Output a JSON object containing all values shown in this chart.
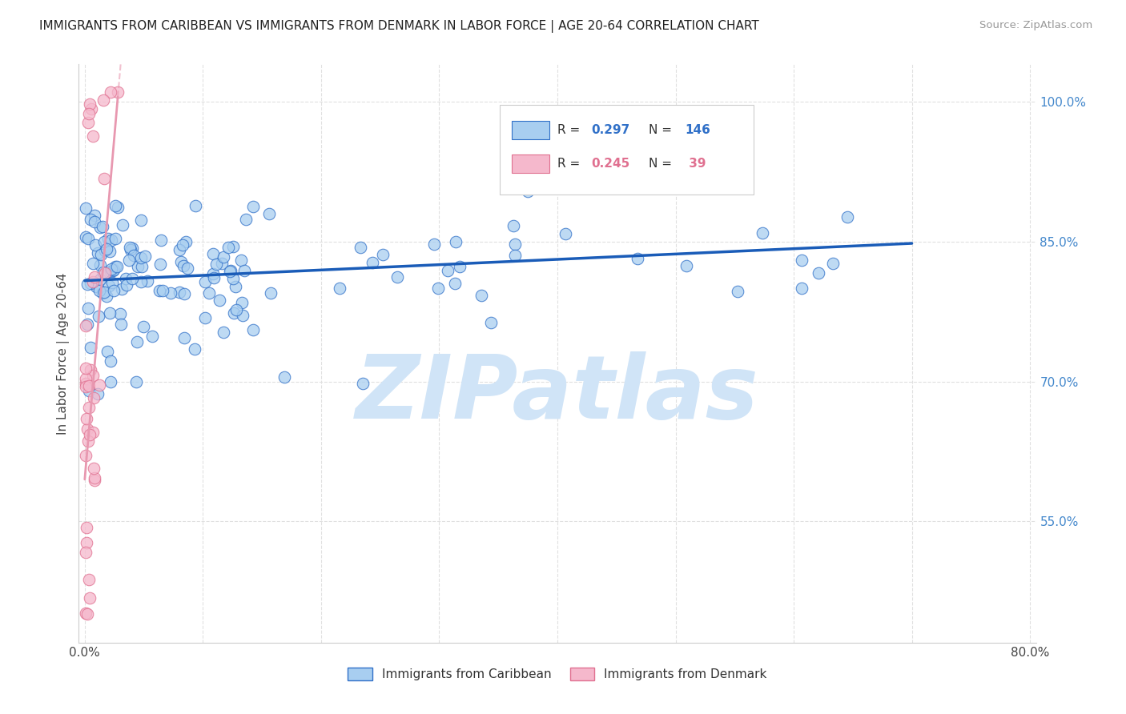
{
  "title": "IMMIGRANTS FROM CARIBBEAN VS IMMIGRANTS FROM DENMARK IN LABOR FORCE | AGE 20-64 CORRELATION CHART",
  "source": "Source: ZipAtlas.com",
  "ylabel": "In Labor Force | Age 20-64",
  "xlim": [
    -0.005,
    0.805
  ],
  "ylim": [
    0.42,
    1.04
  ],
  "xticks": [
    0.0,
    0.1,
    0.2,
    0.3,
    0.4,
    0.5,
    0.6,
    0.7,
    0.8
  ],
  "xticklabels": [
    "0.0%",
    "",
    "",
    "",
    "",
    "",
    "",
    "",
    "80.0%"
  ],
  "yticks_right": [
    0.55,
    0.7,
    0.85,
    1.0
  ],
  "yticklabels_right": [
    "55.0%",
    "70.0%",
    "85.0%",
    "100.0%"
  ],
  "blue_color": "#a8cef0",
  "blue_edge_color": "#3070c8",
  "pink_color": "#f5b8cc",
  "pink_edge_color": "#e07090",
  "pink_trend_color": "#e898b0",
  "blue_trend_color": "#1a5cb8",
  "legend_label_blue": "Immigrants from Caribbean",
  "legend_label_pink": "Immigrants from Denmark",
  "watermark_text": "ZIPatlas",
  "watermark_color": "#d0e4f7",
  "background_color": "#ffffff",
  "grid_color": "#e0e0e0",
  "blue_trend_x0": 0.0,
  "blue_trend_y0": 0.808,
  "blue_trend_x1": 0.7,
  "blue_trend_y1": 0.848,
  "pink_trend_x0": 0.0,
  "pink_trend_y0": 0.595,
  "pink_trend_x1": 0.028,
  "pink_trend_y1": 1.005,
  "title_fontsize": 11,
  "axis_label_fontsize": 11,
  "tick_fontsize": 11,
  "right_tick_color": "#4488cc",
  "source_color": "#999999"
}
